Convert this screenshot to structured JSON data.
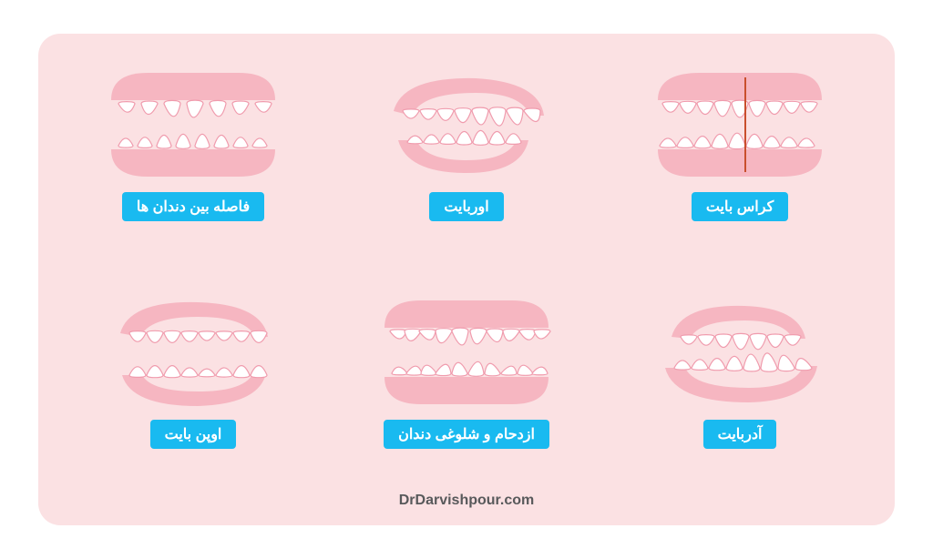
{
  "colors": {
    "card_bg": "#fbe1e3",
    "gum": "#f6b6c1",
    "gum_dark": "#f09bad",
    "tooth_fill": "#ffffff",
    "tooth_stroke": "#f09bad",
    "label_bg": "#19baf0",
    "label_text": "#ffffff",
    "midline": "#c94f2d",
    "credit": "#58595b"
  },
  "grid": [
    {
      "id": "crossbite",
      "label": "کراس بایت",
      "type": "crossbite",
      "midline": true
    },
    {
      "id": "overbite",
      "label": "اوربایت",
      "type": "overbite",
      "midline": false
    },
    {
      "id": "spacing",
      "label": "فاصله بین دندان ها",
      "type": "spacing",
      "midline": false
    },
    {
      "id": "underbite",
      "label": "آدربایت",
      "type": "underbite",
      "midline": false
    },
    {
      "id": "crowding",
      "label": "ازدحام و شلوغی دندان",
      "type": "crowding",
      "midline": false
    },
    {
      "id": "openbite",
      "label": "اوپن بایت",
      "type": "openbite",
      "midline": false
    }
  ],
  "credit": "DrDarvishpour.com",
  "style": {
    "label_fontsize": 16,
    "label_radius": 4,
    "card_radius": 24,
    "tooth_stroke_width": 1.2
  }
}
